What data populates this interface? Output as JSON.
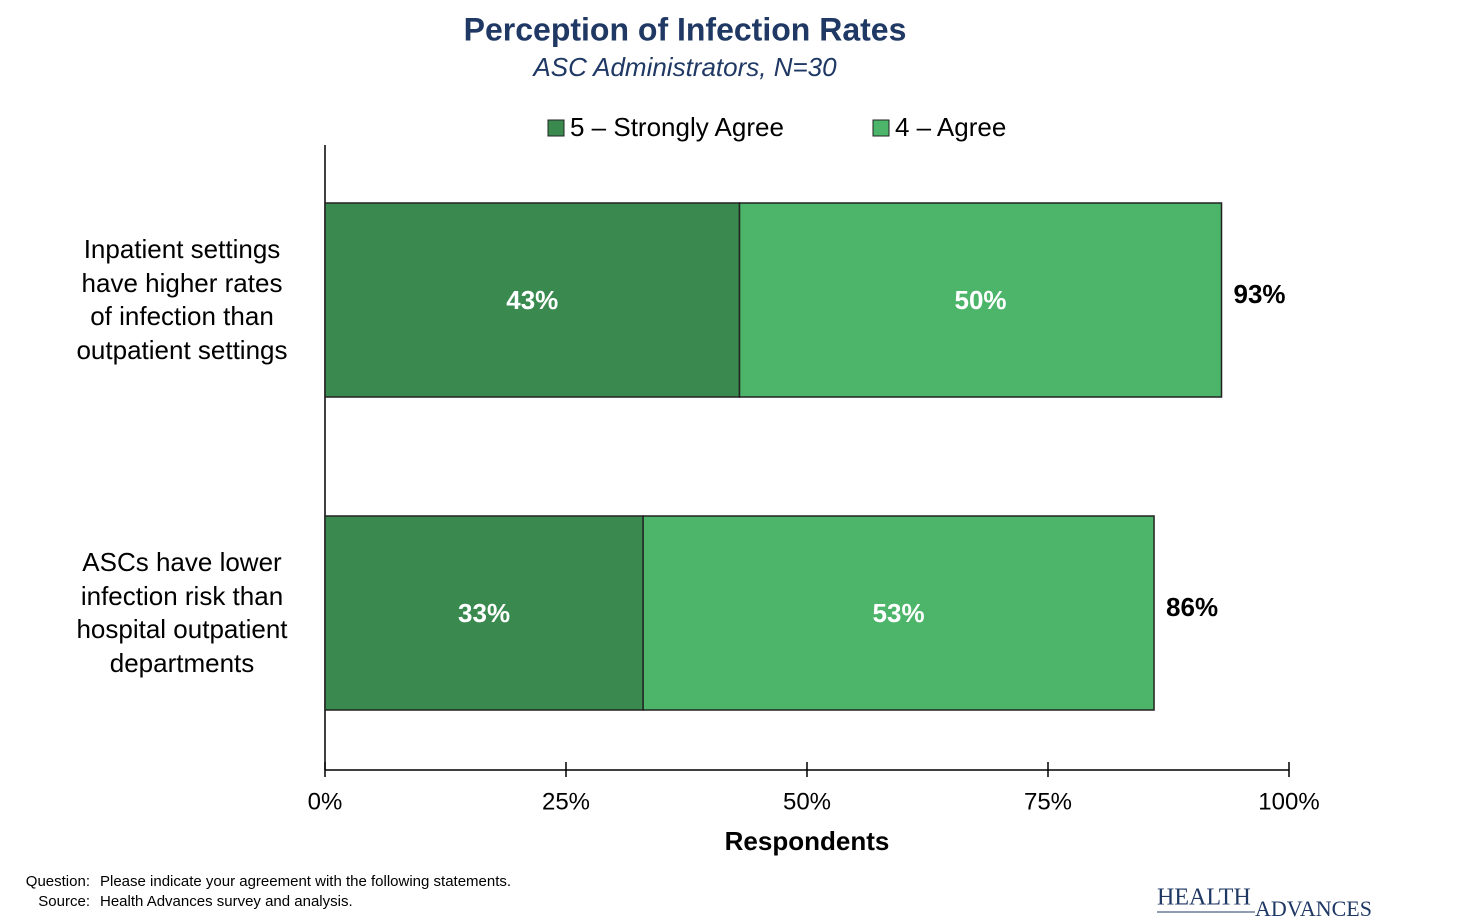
{
  "chart_data": {
    "type": "stacked-bar-horizontal",
    "title": "Perception of Infection Rates",
    "subtitle": "ASC Administrators, N=30",
    "categories": [
      "Inpatient settings\nhave higher rates\nof infection than\noutpatient settings",
      "ASCs have lower\ninfection risk than\nhospital outpatient\ndepartments"
    ],
    "series": [
      {
        "name": "5 – Strongly Agree",
        "color": "#3a8a50",
        "values": [
          43,
          33
        ],
        "value_labels": [
          "43%",
          "33%"
        ]
      },
      {
        "name": "4 – Agree",
        "color": "#4db56a",
        "values": [
          50,
          53
        ],
        "value_labels": [
          "50%",
          "53%"
        ]
      }
    ],
    "totals": {
      "values": [
        93,
        86
      ],
      "value_labels": [
        "93%",
        "86%"
      ]
    },
    "xlim": [
      0,
      100
    ],
    "xticks": [
      {
        "value": 0,
        "label": "0%"
      },
      {
        "value": 25,
        "label": "25%"
      },
      {
        "value": 50,
        "label": "50%"
      },
      {
        "value": 75,
        "label": "75%"
      },
      {
        "value": 100,
        "label": "100%"
      }
    ],
    "xlabel": "Respondents",
    "legend": "top"
  },
  "footer": {
    "question_label": "Question:",
    "question": "Please indicate your agreement with the following statements.",
    "source_label": "Source:",
    "source": "Health Advances survey and analysis.",
    "logo_top": "HEALTH",
    "logo_bottom": "ADVANCES"
  }
}
